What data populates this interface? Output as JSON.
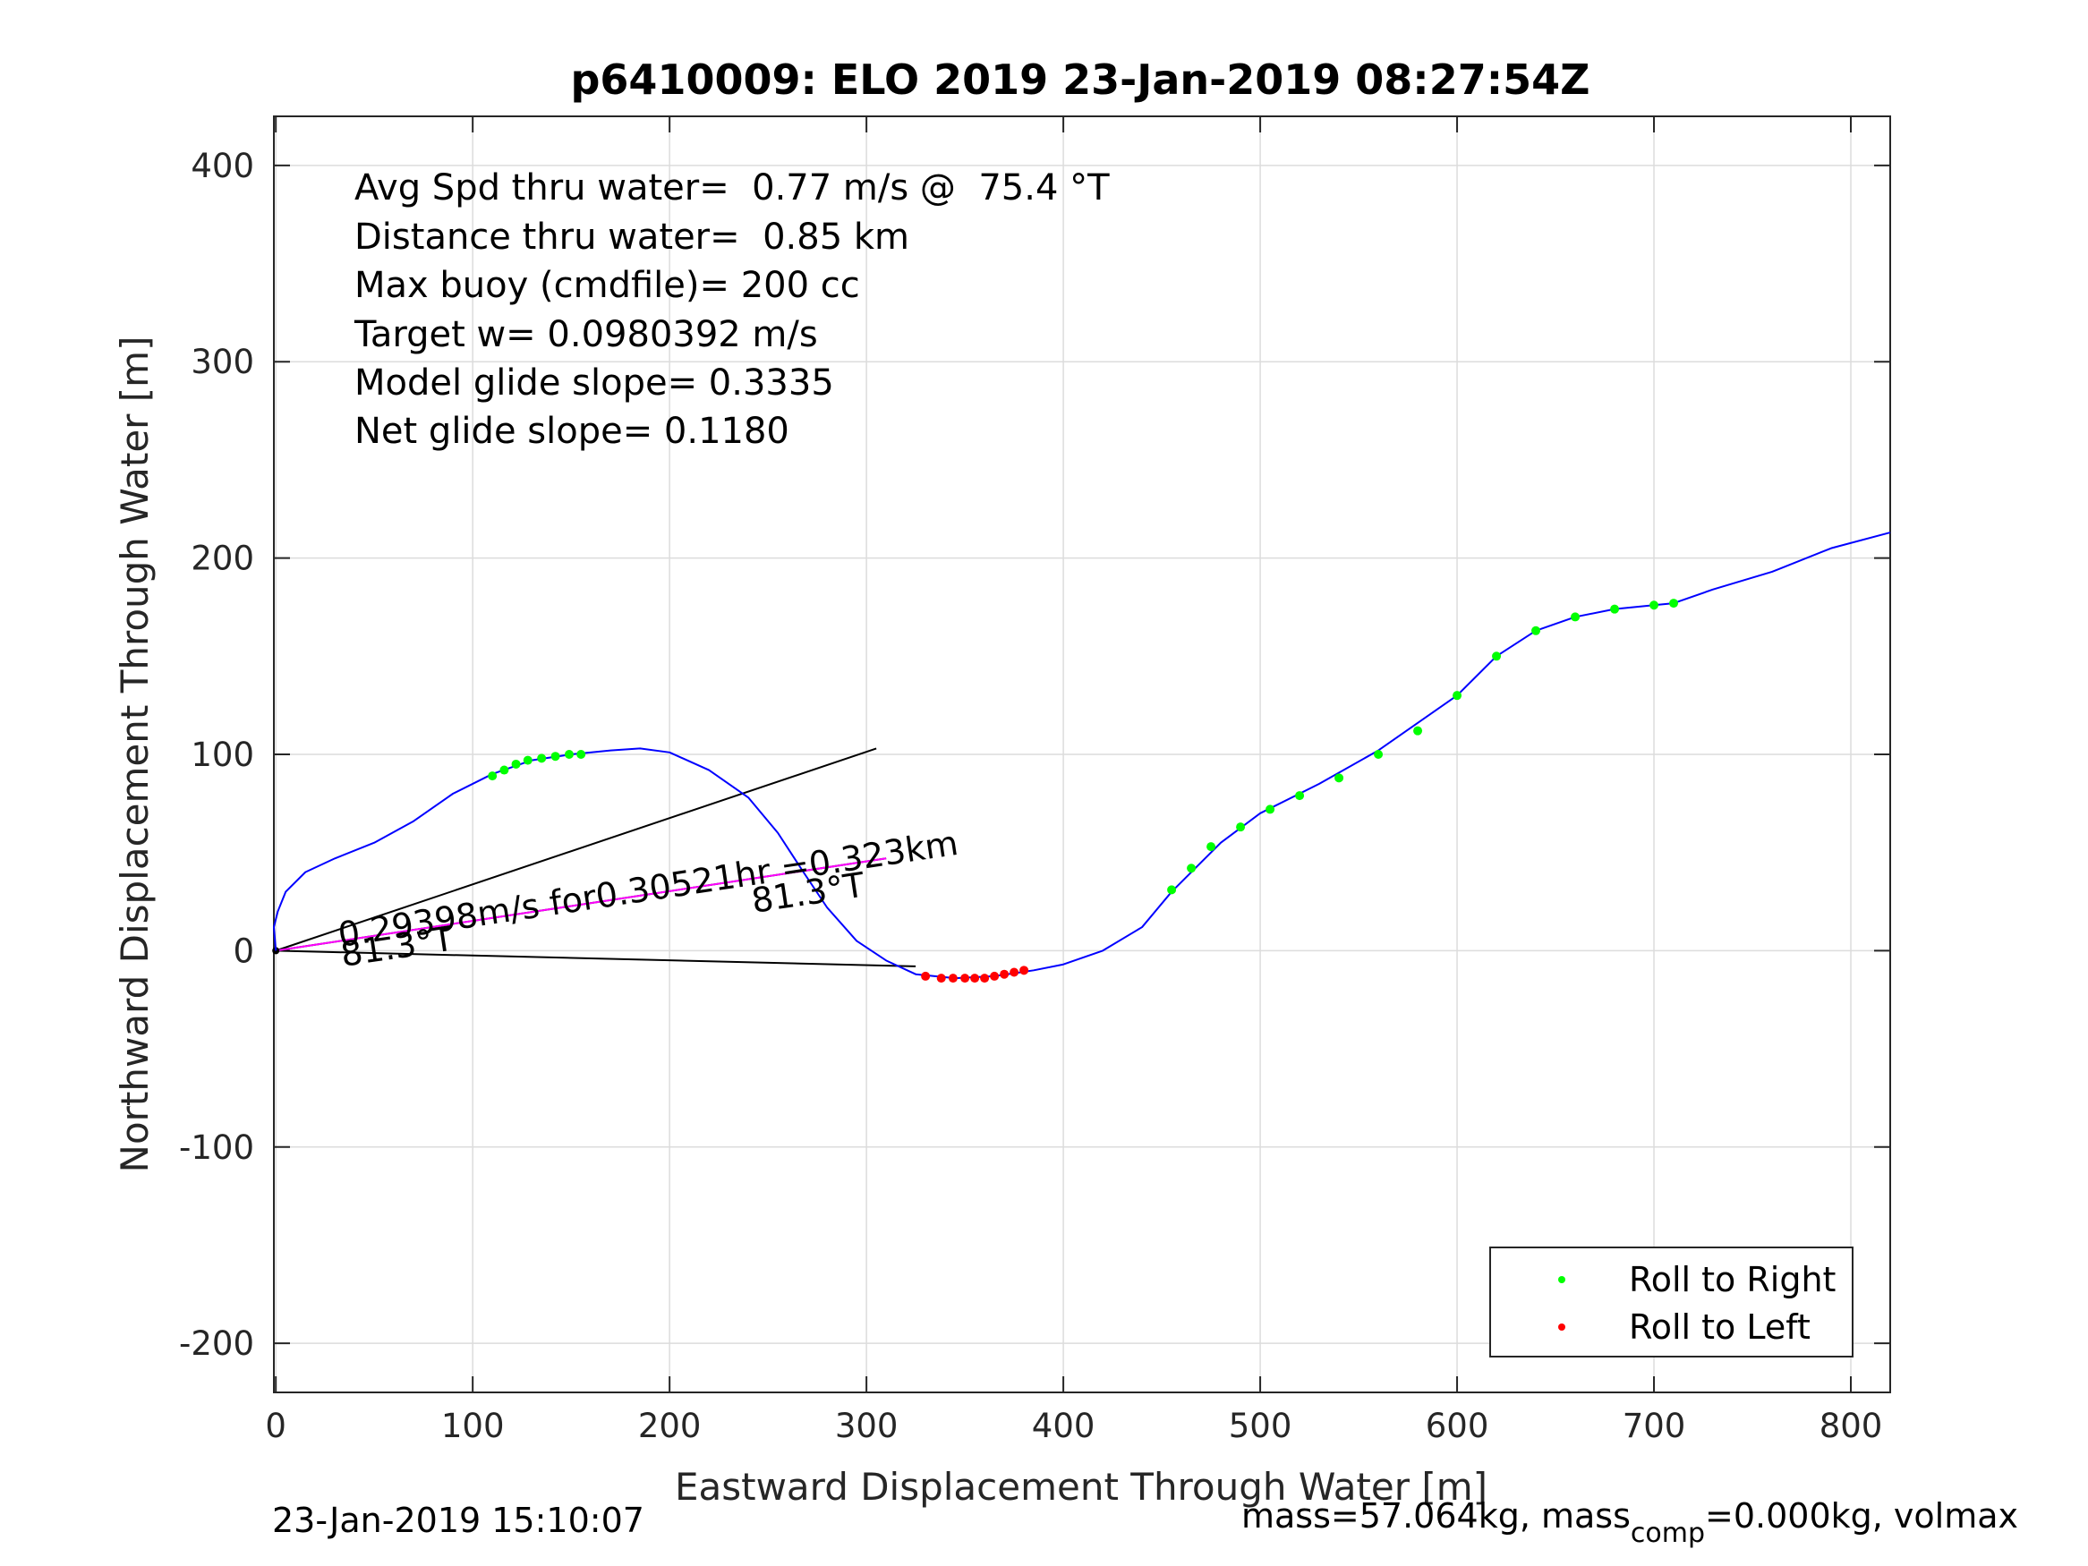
{
  "chart_data": {
    "type": "line",
    "title": "p6410009: ELO 2019 23-Jan-2019 08:27:54Z",
    "xlabel": "Eastward Displacement Through Water [m]",
    "ylabel": "Northward Displacement Through Water [m]",
    "xlim": [
      -1,
      820
    ],
    "ylim": [
      -225,
      425
    ],
    "xticks": [
      0,
      100,
      200,
      300,
      400,
      500,
      600,
      700,
      800
    ],
    "yticks": [
      -200,
      -100,
      0,
      100,
      200,
      300,
      400
    ],
    "xtick_labels": [
      "0",
      "100",
      "200",
      "300",
      "400",
      "500",
      "600",
      "700",
      "800"
    ],
    "ytick_labels": [
      "-200",
      "-100",
      "0",
      "100",
      "200",
      "300",
      "400"
    ],
    "grid": true,
    "legend_position": "bottom-right",
    "stats": [
      "Avg Spd thru water=  0.77 m/s @  75.4 °T",
      "Distance thru water=  0.85 km",
      "Max buoy (cmdfile)= 200 cc",
      "Target w= 0.0980392 m/s",
      "Model glide slope= 0.3335",
      "Net glide slope= 0.1180"
    ],
    "annotations": {
      "current_label": "0.29398m/s for0.30521hr =0.323km",
      "heading_label_1": "81.3°T",
      "heading_label_2": "81.3°T"
    },
    "footer": {
      "left": "23-Jan-2019 15:10:07",
      "right_prefix": "mass=57.064kg, mass",
      "right_sub": "comp",
      "right_suffix": "=0.000kg, volmax"
    },
    "series": [
      {
        "name": "track",
        "color": "#0000ff",
        "x": [
          0,
          -1,
          1,
          5,
          15,
          30,
          50,
          70,
          90,
          110,
          130,
          150,
          170,
          185,
          200,
          220,
          240,
          255,
          268,
          280,
          295,
          310,
          325,
          345,
          365,
          385,
          400,
          420,
          440,
          455,
          480,
          500,
          530,
          560,
          600,
          620,
          640,
          660,
          680,
          700,
          710,
          730,
          760,
          790,
          820
        ],
        "y": [
          0,
          12,
          20,
          30,
          40,
          47,
          55,
          66,
          80,
          90,
          97,
          100,
          102,
          103,
          101,
          92,
          78,
          60,
          40,
          22,
          5,
          -5,
          -12,
          -14,
          -13,
          -10,
          -7,
          0,
          12,
          30,
          55,
          70,
          85,
          102,
          130,
          150,
          163,
          170,
          174,
          176,
          177,
          184,
          193,
          205,
          213
        ]
      },
      {
        "name": "Roll to Right",
        "color": "#00ff00",
        "x": [
          110,
          116,
          122,
          128,
          135,
          142,
          149,
          155,
          455,
          465,
          475,
          490,
          505,
          520,
          540,
          560,
          580,
          600,
          620,
          640,
          660,
          680,
          700,
          710
        ],
        "y": [
          89,
          92,
          95,
          97,
          98,
          99,
          100,
          100,
          31,
          42,
          53,
          63,
          72,
          79,
          88,
          100,
          112,
          130,
          150,
          163,
          170,
          174,
          176,
          177
        ]
      },
      {
        "name": "Roll to Left",
        "color": "#ff0000",
        "x": [
          330,
          338,
          344,
          350,
          355,
          360,
          365,
          370,
          375,
          380
        ],
        "y": [
          -13,
          -14,
          -14,
          -14,
          -14,
          -14,
          -13,
          -12,
          -11,
          -10
        ]
      }
    ],
    "reference_lines": [
      {
        "name": "direction-line-upper",
        "color": "#000000",
        "x": [
          0,
          305
        ],
        "y": [
          0,
          103
        ]
      },
      {
        "name": "direction-line-middle",
        "color": "#000000",
        "x": [
          0,
          310
        ],
        "y": [
          0,
          47
        ]
      },
      {
        "name": "direction-line-lower",
        "color": "#000000",
        "x": [
          0,
          325
        ],
        "y": [
          0,
          -8
        ]
      },
      {
        "name": "current-vector",
        "color": "#ff00ff",
        "x": [
          0,
          310
        ],
        "y": [
          0,
          47
        ]
      }
    ]
  }
}
